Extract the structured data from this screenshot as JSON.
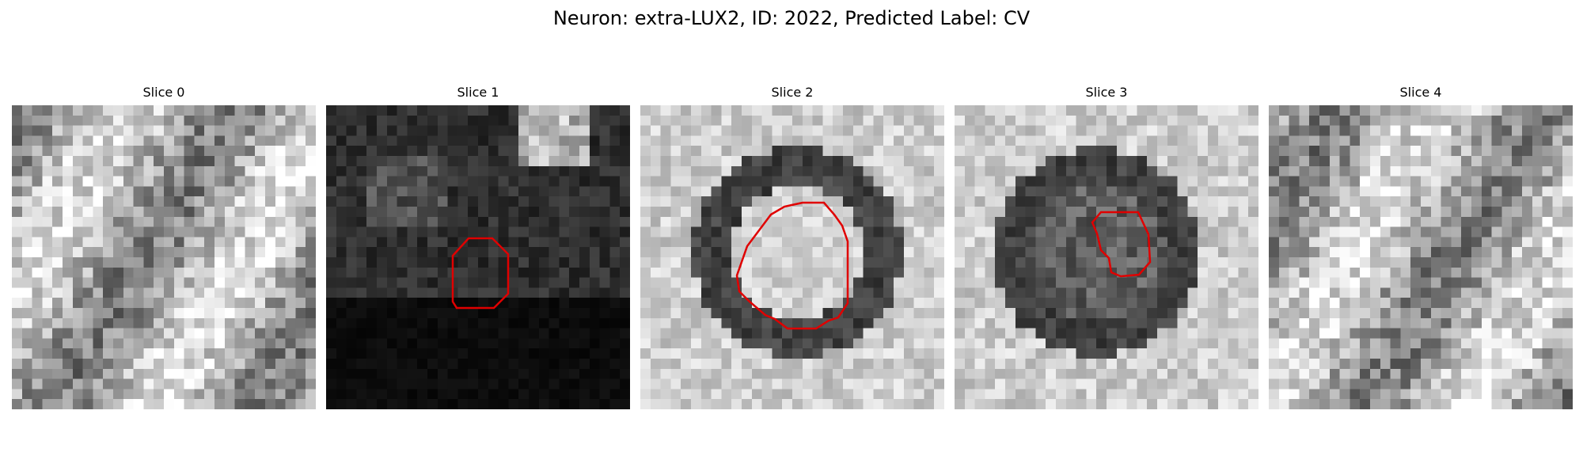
{
  "figure": {
    "title": "Neuron: extra-LUX2, ID: 2022, Predicted Label: CV"
  },
  "slices": [
    {
      "title": "Slice 0",
      "style": "bright-texture",
      "contour": false
    },
    {
      "title": "Slice 1",
      "style": "dark",
      "contour": true
    },
    {
      "title": "Slice 2",
      "style": "ring-bright-center",
      "contour": true
    },
    {
      "title": "Slice 3",
      "style": "ring-dark-center",
      "contour": true
    },
    {
      "title": "Slice 4",
      "style": "bright-texture",
      "contour": false
    }
  ],
  "contour_color": "#e00000"
}
